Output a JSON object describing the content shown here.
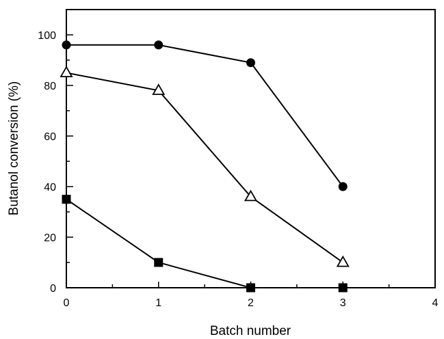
{
  "chart_data": {
    "type": "line",
    "title": "",
    "xlabel": "Batch number",
    "ylabel": "Butanol conversion (%)",
    "xlim": [
      0,
      4
    ],
    "ylim": [
      0,
      110
    ],
    "xticks": [
      0,
      1,
      2,
      3,
      4
    ],
    "yticks": [
      0,
      20,
      40,
      60,
      80,
      100
    ],
    "grid": false,
    "legend": "none",
    "series": [
      {
        "marker": "filled-circle",
        "color": "#000000",
        "x": [
          0,
          1,
          2,
          3
        ],
        "y": [
          96,
          96,
          89,
          40
        ]
      },
      {
        "marker": "open-triangle",
        "color": "#000000",
        "x": [
          0,
          1,
          2,
          3
        ],
        "y": [
          85,
          78,
          36,
          10
        ]
      },
      {
        "marker": "filled-square",
        "color": "#000000",
        "x": [
          0,
          1,
          2,
          3
        ],
        "y": [
          35,
          10,
          0,
          0
        ]
      }
    ]
  }
}
